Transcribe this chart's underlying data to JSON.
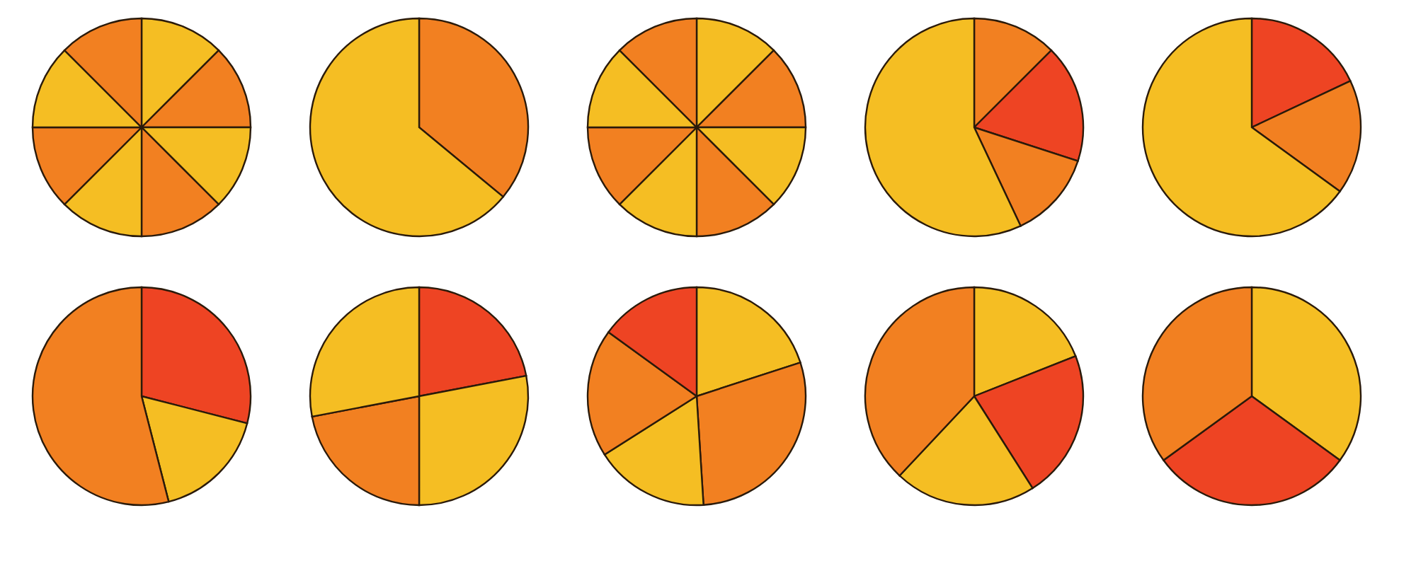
{
  "chart_data": [
    {
      "type": "pie",
      "categories": [
        null,
        null,
        null,
        null,
        null,
        null,
        null,
        null
      ],
      "values": [
        12.5,
        12.5,
        12.5,
        12.5,
        12.5,
        12.5,
        12.5,
        12.5
      ],
      "colors": [
        "#f5be23",
        "#f28021",
        "#f5be23",
        "#f28021",
        "#f5be23",
        "#f28021",
        "#f5be23",
        "#f28021"
      ]
    },
    {
      "type": "pie",
      "categories": [
        null,
        null
      ],
      "values": [
        36,
        64
      ],
      "colors": [
        "#f28021",
        "#f5be23"
      ]
    },
    {
      "type": "pie",
      "categories": [
        null,
        null,
        null,
        null,
        null,
        null,
        null,
        null
      ],
      "values": [
        12.5,
        12.5,
        12.5,
        12.5,
        12.5,
        12.5,
        12.5,
        12.5
      ],
      "colors": [
        "#f5be23",
        "#f28021",
        "#f5be23",
        "#f28021",
        "#f5be23",
        "#f28021",
        "#f5be23",
        "#f28021"
      ]
    },
    {
      "type": "pie",
      "categories": [
        null,
        null,
        null,
        null
      ],
      "values": [
        12.5,
        17.5,
        13,
        57
      ],
      "colors": [
        "#f28021",
        "#ee4423",
        "#f28021",
        "#f5be23"
      ]
    },
    {
      "type": "pie",
      "categories": [
        null,
        null,
        null
      ],
      "values": [
        18,
        17,
        65
      ],
      "colors": [
        "#ee4423",
        "#f28021",
        "#f5be23"
      ]
    },
    {
      "type": "pie",
      "categories": [
        null,
        null,
        null
      ],
      "values": [
        29,
        17,
        54
      ],
      "colors": [
        "#ee4423",
        "#f5be23",
        "#f28021"
      ]
    },
    {
      "type": "pie",
      "categories": [
        null,
        null,
        null,
        null
      ],
      "values": [
        22,
        28,
        22,
        28
      ],
      "colors": [
        "#ee4423",
        "#f5be23",
        "#f28021",
        "#f5be23"
      ]
    },
    {
      "type": "pie",
      "categories": [
        null,
        null,
        null,
        null,
        null
      ],
      "values": [
        20,
        29,
        17,
        19,
        15
      ],
      "colors": [
        "#f5be23",
        "#f28021",
        "#f5be23",
        "#f28021",
        "#ee4423"
      ]
    },
    {
      "type": "pie",
      "categories": [
        null,
        null,
        null,
        null
      ],
      "values": [
        19,
        22,
        21,
        38
      ],
      "colors": [
        "#f5be23",
        "#ee4423",
        "#f5be23",
        "#f28021"
      ]
    },
    {
      "type": "pie",
      "categories": [
        null,
        null,
        null
      ],
      "values": [
        35,
        30,
        35
      ],
      "colors": [
        "#f5be23",
        "#ee4423",
        "#f28021"
      ]
    }
  ]
}
